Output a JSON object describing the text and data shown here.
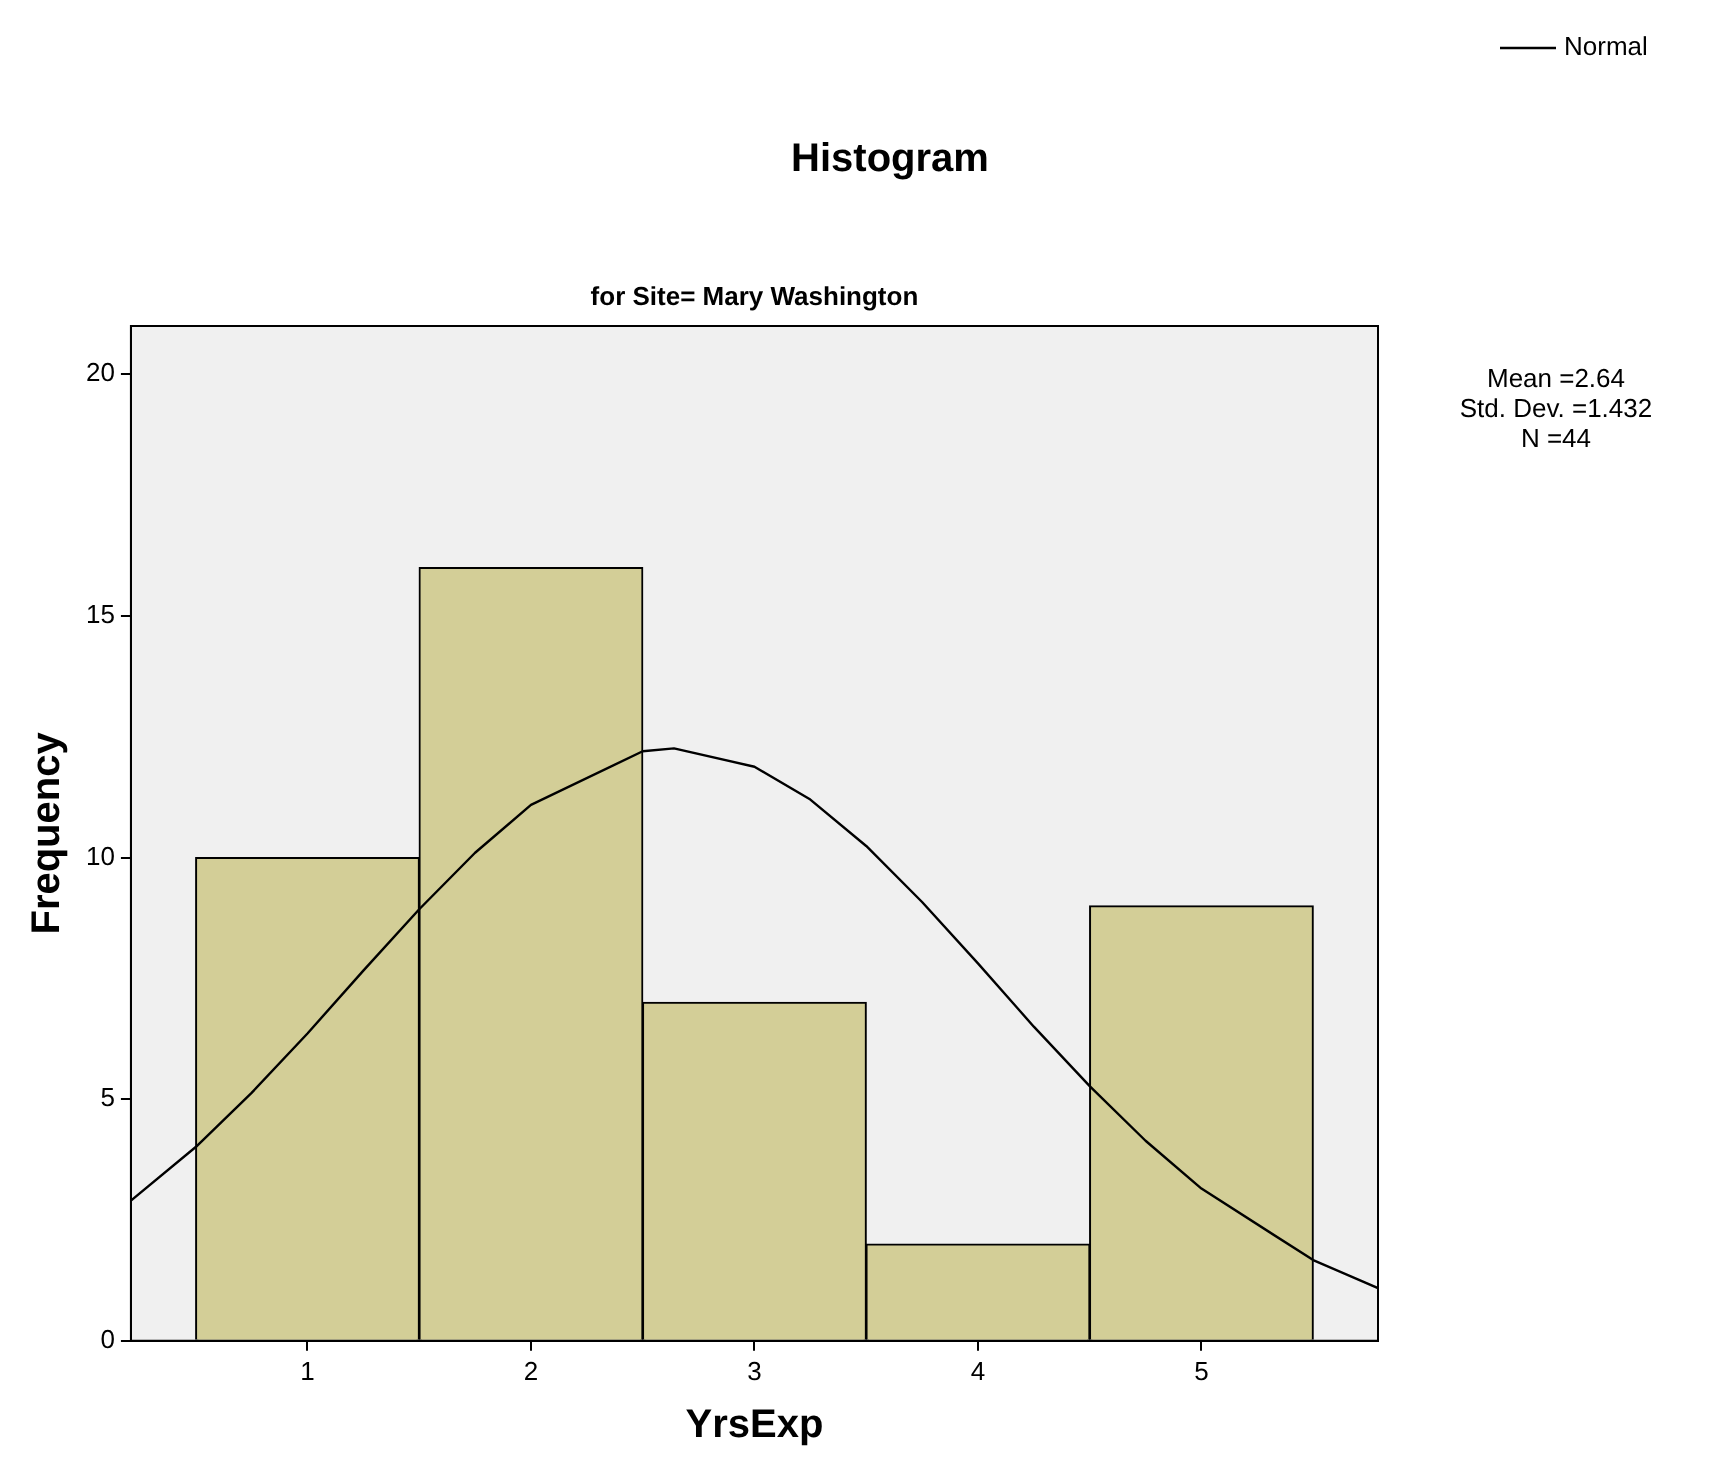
{
  "chart_data": {
    "type": "histogram",
    "title": "Histogram",
    "subtitle": "for Site= Mary Washington",
    "xlabel": "YrsExp",
    "ylabel": "Frequency",
    "bins": [
      0.5,
      1.5,
      2.5,
      3.5,
      4.5,
      5.5
    ],
    "series": [
      {
        "color": "#d3ce97",
        "values": [
          10,
          16,
          7,
          2,
          9
        ]
      },
      {
        "type": "line",
        "name": "Normal",
        "color": "#000000",
        "x": [
          0.21,
          0.5,
          0.75,
          1,
          1.25,
          1.5,
          1.75,
          2,
          2.5,
          2.64,
          3,
          3.25,
          3.5,
          3.75,
          4,
          4.25,
          4.5,
          4.75,
          5,
          5.5,
          5.79
        ],
        "values": [
          2.9,
          4.01,
          5.13,
          6.36,
          7.66,
          8.93,
          10.1,
          11.09,
          12.2,
          12.26,
          11.88,
          11.2,
          10.24,
          9.08,
          7.81,
          6.5,
          5.27,
          4.14,
          3.15,
          1.67,
          1.09
        ]
      }
    ],
    "xlim": [
      0.21,
      5.79
    ],
    "xticks": [
      1,
      2,
      3,
      4,
      5
    ],
    "ylim": [
      0,
      21
    ],
    "yticks": [
      0,
      5,
      10,
      15,
      20
    ],
    "grid": false,
    "legend": "top right",
    "marker": "none",
    "line_style": "solid",
    "annotations": [
      "Mean =2.64",
      "Std. Dev. =1.432",
      "N =44"
    ]
  }
}
